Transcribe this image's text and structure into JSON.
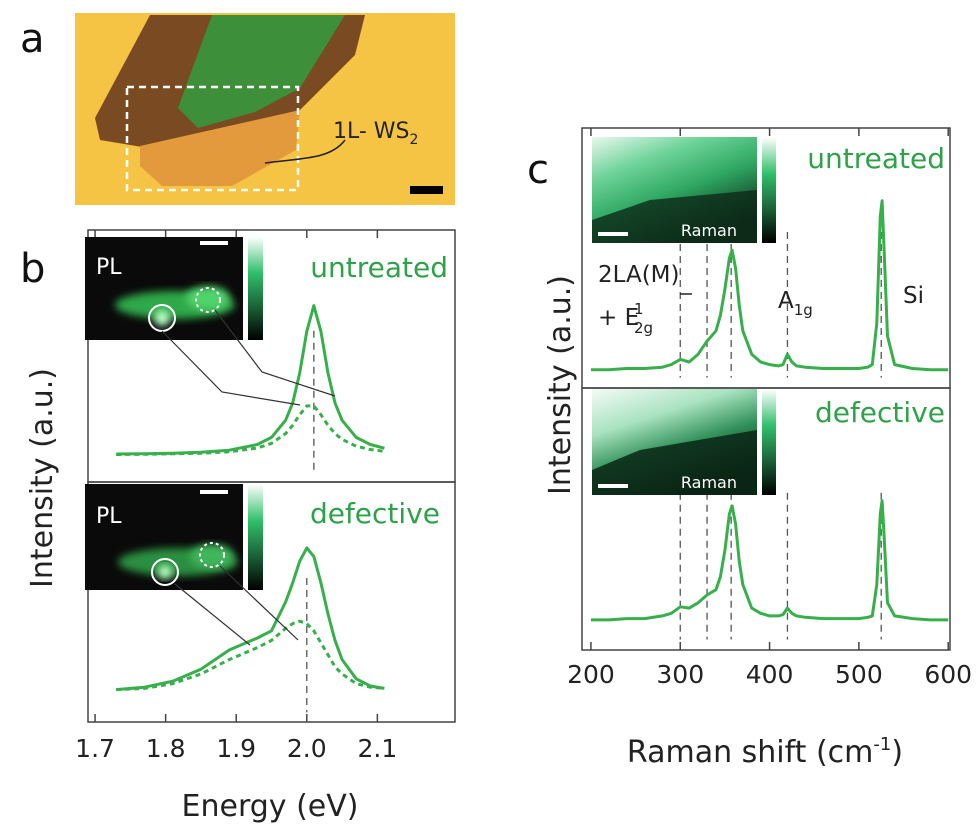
{
  "micrograph": {
    "panel_label": "a",
    "annotation": "1L- WS",
    "annotation_subscript": "2"
  },
  "chart_data": [
    {
      "type": "line",
      "panel_label": "b",
      "ylabel": "Intensity (a.u.)",
      "annotation": "untreated",
      "inset_label": "PL",
      "x": [
        1.73,
        1.77,
        1.81,
        1.85,
        1.89,
        1.93,
        1.95,
        1.97,
        1.98,
        1.99,
        2.0,
        2.01,
        2.02,
        2.03,
        2.04,
        2.05,
        2.07,
        2.09,
        2.11
      ],
      "series": [
        {
          "color": "#37b04b",
          "style": "solid",
          "values": [
            0.111,
            0.112,
            0.114,
            0.118,
            0.126,
            0.149,
            0.177,
            0.245,
            0.314,
            0.432,
            0.598,
            0.7,
            0.598,
            0.432,
            0.314,
            0.245,
            0.177,
            0.149,
            0.134
          ]
        },
        {
          "color": "#37b04b",
          "style": "dashed",
          "values": [
            0.109,
            0.11,
            0.112,
            0.114,
            0.12,
            0.135,
            0.153,
            0.192,
            0.225,
            0.267,
            0.302,
            0.302,
            0.267,
            0.225,
            0.192,
            0.169,
            0.142,
            0.129,
            0.122
          ]
        }
      ],
      "xlim": [
        1.69,
        2.21
      ],
      "ylim": [
        0,
        1
      ],
      "markers": [
        2.01
      ]
    },
    {
      "type": "line",
      "xlabel": "Energy (eV)",
      "annotation": "defective",
      "inset_label": "PL",
      "x": [
        1.73,
        1.77,
        1.81,
        1.85,
        1.89,
        1.93,
        1.95,
        1.97,
        1.98,
        1.99,
        2.0,
        2.01,
        2.02,
        2.03,
        2.04,
        2.05,
        2.07,
        2.09,
        2.11
      ],
      "series": [
        {
          "color": "#37b04b",
          "style": "solid",
          "values": [
            0.135,
            0.145,
            0.17,
            0.22,
            0.3,
            0.35,
            0.38,
            0.5,
            0.58,
            0.67,
            0.725,
            0.69,
            0.58,
            0.45,
            0.34,
            0.26,
            0.18,
            0.15,
            0.14
          ]
        },
        {
          "color": "#37b04b",
          "style": "dashed",
          "values": [
            0.135,
            0.14,
            0.16,
            0.2,
            0.26,
            0.31,
            0.34,
            0.39,
            0.41,
            0.42,
            0.41,
            0.38,
            0.33,
            0.28,
            0.23,
            0.2,
            0.16,
            0.145,
            0.14
          ]
        }
      ],
      "xlim": [
        1.69,
        2.21
      ],
      "ylim": [
        0,
        1
      ],
      "xticks": [
        1.7,
        1.8,
        1.9,
        {
          "value": 2,
          "label": "2.0"
        },
        2.1
      ],
      "markers": [
        2.0
      ]
    },
    {
      "type": "line",
      "panel_label": "c",
      "ylabel": "Intensity (a.u.)",
      "annotation": "untreated",
      "inset_label": "Raman",
      "annotations": [
        {
          "text": "2LA(M)"
        },
        {
          "text": "+ E",
          "sup": "1",
          "sub": "2g"
        },
        {
          "text": "A",
          "sub": "1g"
        },
        {
          "text": "Si"
        }
      ],
      "x": [
        200,
        220,
        240,
        260,
        280,
        290,
        300,
        310,
        320,
        330,
        340,
        345,
        350,
        355,
        358,
        362,
        366,
        370,
        380,
        390,
        400,
        410,
        415,
        420,
        425,
        430,
        440,
        460,
        480,
        500,
        510,
        515,
        520,
        524,
        526,
        528,
        532,
        540,
        560,
        580,
        600
      ],
      "series": [
        {
          "color": "#37b04b",
          "style": "solid",
          "values": [
            0.07,
            0.07,
            0.075,
            0.075,
            0.08,
            0.09,
            0.11,
            0.1,
            0.13,
            0.18,
            0.22,
            0.28,
            0.38,
            0.5,
            0.53,
            0.46,
            0.32,
            0.22,
            0.13,
            0.1,
            0.09,
            0.085,
            0.09,
            0.13,
            0.1,
            0.085,
            0.08,
            0.075,
            0.075,
            0.075,
            0.08,
            0.09,
            0.25,
            0.66,
            0.72,
            0.55,
            0.2,
            0.09,
            0.075,
            0.07,
            0.07
          ]
        }
      ],
      "xlim": [
        190,
        602
      ],
      "ylim": [
        0,
        1
      ],
      "markers": [
        300,
        330,
        357,
        420,
        525
      ]
    },
    {
      "type": "line",
      "xlabel": "Raman shift (cm",
      "xlabel_superscript": "-1",
      "xlabel_end": ")",
      "annotation": "defective",
      "inset_label": "Raman",
      "x": [
        200,
        220,
        240,
        260,
        280,
        290,
        300,
        310,
        320,
        330,
        340,
        345,
        350,
        355,
        358,
        362,
        366,
        370,
        380,
        390,
        400,
        410,
        415,
        420,
        425,
        430,
        440,
        460,
        480,
        500,
        510,
        515,
        520,
        524,
        526,
        528,
        532,
        540,
        560,
        580,
        600
      ],
      "series": [
        {
          "color": "#37b04b",
          "style": "solid",
          "values": [
            0.115,
            0.115,
            0.12,
            0.12,
            0.13,
            0.14,
            0.165,
            0.16,
            0.18,
            0.21,
            0.23,
            0.28,
            0.38,
            0.52,
            0.55,
            0.48,
            0.34,
            0.25,
            0.16,
            0.14,
            0.13,
            0.13,
            0.135,
            0.16,
            0.14,
            0.13,
            0.125,
            0.12,
            0.12,
            0.12,
            0.125,
            0.13,
            0.25,
            0.52,
            0.57,
            0.45,
            0.18,
            0.13,
            0.12,
            0.115,
            0.115
          ]
        }
      ],
      "xlim": [
        190,
        602
      ],
      "ylim": [
        0,
        1
      ],
      "xticks": [
        200,
        300,
        400,
        500,
        600
      ],
      "markers": [
        300,
        330,
        357,
        420,
        525
      ]
    }
  ]
}
